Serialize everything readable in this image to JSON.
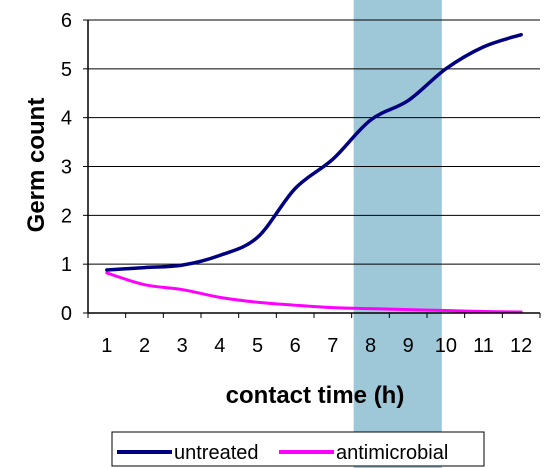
{
  "chart_data": {
    "type": "line",
    "title": "",
    "xlabel": "contact time (h)",
    "ylabel": "Germ count",
    "categories": [
      "1",
      "2",
      "3",
      "4",
      "5",
      "6",
      "7",
      "8",
      "9",
      "10",
      "11",
      "12"
    ],
    "x": [
      1,
      2,
      3,
      4,
      5,
      6,
      7,
      8,
      9,
      10,
      11,
      12
    ],
    "ylim": [
      0,
      6
    ],
    "yticks": [
      "0",
      "1",
      "2",
      "3",
      "4",
      "5",
      "6"
    ],
    "grid": "horizontal",
    "highlight_band": {
      "from": 8,
      "to": 10,
      "color": "#9ec8d8"
    },
    "legend_position": "bottom",
    "series": [
      {
        "name": "untreated",
        "color": "#000080",
        "values": [
          0.88,
          0.93,
          0.98,
          1.18,
          1.55,
          2.55,
          3.15,
          3.95,
          4.35,
          5.0,
          5.45,
          5.7
        ]
      },
      {
        "name": "antimicrobial",
        "color": "#ff00ff",
        "values": [
          0.82,
          0.58,
          0.48,
          0.32,
          0.22,
          0.16,
          0.11,
          0.09,
          0.07,
          0.05,
          0.03,
          0.02
        ]
      }
    ]
  }
}
